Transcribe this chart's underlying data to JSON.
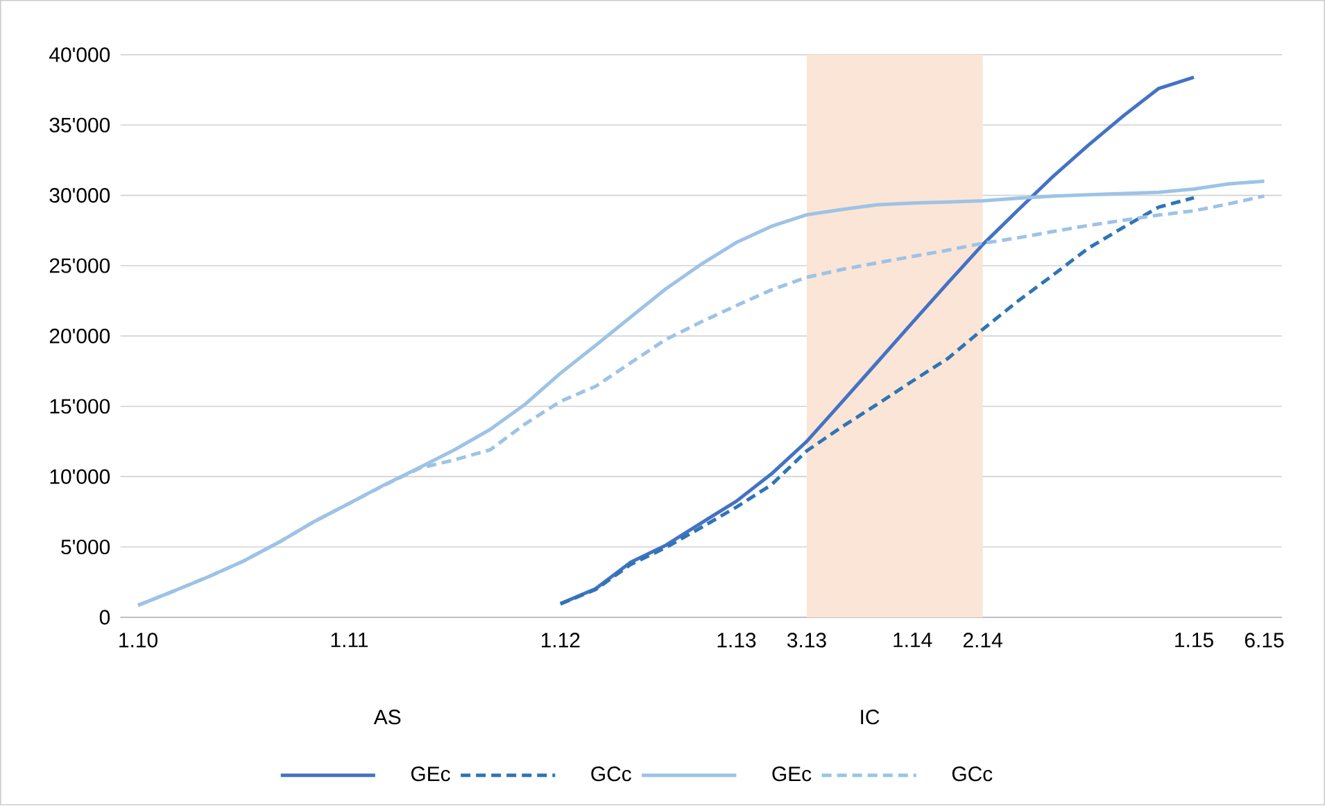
{
  "chart_data": {
    "type": "line",
    "categories": [
      "1.10",
      null,
      null,
      null,
      null,
      null,
      "1.11",
      null,
      null,
      null,
      null,
      null,
      "1.12",
      null,
      null,
      null,
      null,
      "1.13",
      null,
      "3.13",
      null,
      null,
      "1.14",
      null,
      "2.14",
      null,
      null,
      null,
      null,
      null,
      "1.15",
      null,
      "6.15"
    ],
    "ylim": [
      0,
      40000
    ],
    "yticks": [
      0,
      {
        "value": 5000,
        "label": "5'000"
      },
      {
        "value": 10000,
        "label": "10'000"
      },
      {
        "value": 15000,
        "label": "15'000"
      },
      {
        "value": 20000,
        "label": "20'000"
      },
      {
        "value": 25000,
        "label": "25'000"
      },
      {
        "value": 30000,
        "label": "30'000"
      },
      {
        "value": 35000,
        "label": "35'000"
      },
      {
        "value": 40000,
        "label": "40'000"
      }
    ],
    "grid": "y",
    "legend": "bottom",
    "marker": "none",
    "bands": [
      {
        "axis": "x",
        "from": "3.13",
        "to": "2.14",
        "color": "#fbe5d6"
      }
    ],
    "annotations": [
      "AS",
      "IC"
    ],
    "series": [
      {
        "name": "GEc",
        "color": "#4472c4",
        "line_style": "solid",
        "values": [
          null,
          null,
          null,
          null,
          null,
          null,
          null,
          null,
          null,
          null,
          null,
          null,
          960,
          2030,
          3920,
          5130,
          6700,
          8250,
          10200,
          12500,
          15300,
          18120,
          20950,
          23750,
          26500,
          28950,
          31350,
          33560,
          35660,
          37600,
          38400,
          null,
          null
        ]
      },
      {
        "name": "GCc",
        "color": "#2e75b6",
        "line_style": "dashed",
        "values": [
          null,
          null,
          null,
          null,
          null,
          null,
          null,
          null,
          null,
          null,
          null,
          null,
          950,
          1970,
          3760,
          4960,
          6380,
          7830,
          9430,
          11830,
          13540,
          15140,
          16790,
          18380,
          20470,
          22480,
          24340,
          26240,
          27730,
          29160,
          29830,
          null,
          null
        ]
      },
      {
        "name": "GEc",
        "color": "#9dc3e6",
        "line_style": "solid",
        "values": [
          850,
          1850,
          2880,
          4000,
          5330,
          6800,
          8100,
          9420,
          10650,
          11920,
          13350,
          15150,
          17350,
          19330,
          21350,
          23360,
          25100,
          26650,
          27800,
          28620,
          29000,
          29330,
          29450,
          29520,
          29610,
          29800,
          29950,
          30040,
          30130,
          30220,
          30450,
          30820,
          31000
        ]
      },
      {
        "name": "GCc",
        "color": "#9dc3e6",
        "line_style": "dashed",
        "values": [
          850,
          1850,
          2880,
          4000,
          5330,
          6800,
          8100,
          9400,
          10600,
          11200,
          11900,
          13750,
          15350,
          16420,
          18100,
          19760,
          21000,
          22160,
          23280,
          24170,
          24730,
          25200,
          25650,
          26100,
          26590,
          26980,
          27430,
          27860,
          28230,
          28600,
          28900,
          29400,
          29950
        ]
      }
    ]
  }
}
